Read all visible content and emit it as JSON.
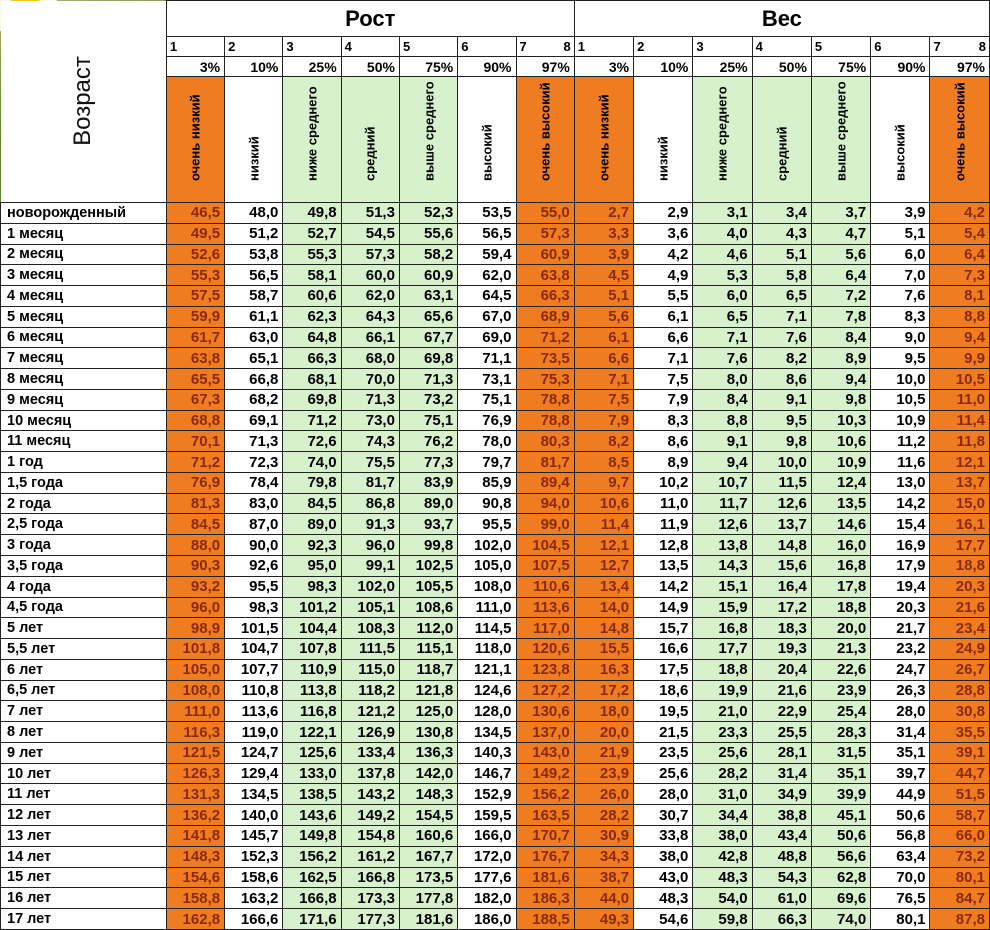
{
  "age_label": "Возраст",
  "height_label": "Рост",
  "weight_label": "Вес",
  "column_numbers": [
    "1",
    "2",
    "3",
    "4",
    "5",
    "6",
    "7",
    "8"
  ],
  "percentiles": [
    "3%",
    "10%",
    "25%",
    "50%",
    "75%",
    "90%",
    "97%"
  ],
  "categories": [
    "очень низкий",
    "низкий",
    "ниже среднего",
    "средний",
    "выше среднего",
    "высокий",
    "очень высокий"
  ],
  "rows": [
    {
      "age": "новорожденный",
      "h": [
        "46,5",
        "48,0",
        "49,8",
        "51,3",
        "52,3",
        "53,5",
        "55,0"
      ],
      "w": [
        "2,7",
        "2,9",
        "3,1",
        "3,4",
        "3,7",
        "3,9",
        "4,2"
      ]
    },
    {
      "age": "1 месяц",
      "h": [
        "49,5",
        "51,2",
        "52,7",
        "54,5",
        "55,6",
        "56,5",
        "57,3"
      ],
      "w": [
        "3,3",
        "3,6",
        "4,0",
        "4,3",
        "4,7",
        "5,1",
        "5,4"
      ]
    },
    {
      "age": "2 месяц",
      "h": [
        "52,6",
        "53,8",
        "55,3",
        "57,3",
        "58,2",
        "59,4",
        "60,9"
      ],
      "w": [
        "3,9",
        "4,2",
        "4,6",
        "5,1",
        "5,6",
        "6,0",
        "6,4"
      ]
    },
    {
      "age": "3 месяц",
      "h": [
        "55,3",
        "56,5",
        "58,1",
        "60,0",
        "60,9",
        "62,0",
        "63,8"
      ],
      "w": [
        "4,5",
        "4,9",
        "5,3",
        "5,8",
        "6,4",
        "7,0",
        "7,3"
      ]
    },
    {
      "age": "4 месяц",
      "h": [
        "57,5",
        "58,7",
        "60,6",
        "62,0",
        "63,1",
        "64,5",
        "66,3"
      ],
      "w": [
        "5,1",
        "5,5",
        "6,0",
        "6,5",
        "7,2",
        "7,6",
        "8,1"
      ]
    },
    {
      "age": "5 месяц",
      "h": [
        "59,9",
        "61,1",
        "62,3",
        "64,3",
        "65,6",
        "67,0",
        "68,9"
      ],
      "w": [
        "5,6",
        "6,1",
        "6,5",
        "7,1",
        "7,8",
        "8,3",
        "8,8"
      ]
    },
    {
      "age": "6 месяц",
      "h": [
        "61,7",
        "63,0",
        "64,8",
        "66,1",
        "67,7",
        "69,0",
        "71,2"
      ],
      "w": [
        "6,1",
        "6,6",
        "7,1",
        "7,6",
        "8,4",
        "9,0",
        "9,4"
      ]
    },
    {
      "age": "7 месяц",
      "h": [
        "63,8",
        "65,1",
        "66,3",
        "68,0",
        "69,8",
        "71,1",
        "73,5"
      ],
      "w": [
        "6,6",
        "7,1",
        "7,6",
        "8,2",
        "8,9",
        "9,5",
        "9,9"
      ]
    },
    {
      "age": "8 месяц",
      "h": [
        "65,5",
        "66,8",
        "68,1",
        "70,0",
        "71,3",
        "73,1",
        "75,3"
      ],
      "w": [
        "7,1",
        "7,5",
        "8,0",
        "8,6",
        "9,4",
        "10,0",
        "10,5"
      ]
    },
    {
      "age": "9 месяц",
      "h": [
        "67,3",
        "68,2",
        "69,8",
        "71,3",
        "73,2",
        "75,1",
        "78,8"
      ],
      "w": [
        "7,5",
        "7,9",
        "8,4",
        "9,1",
        "9,8",
        "10,5",
        "11,0"
      ]
    },
    {
      "age": "10 месяц",
      "h": [
        "68,8",
        "69,1",
        "71,2",
        "73,0",
        "75,1",
        "76,9",
        "78,8"
      ],
      "w": [
        "7,9",
        "8,3",
        "8,8",
        "9,5",
        "10,3",
        "10,9",
        "11,4"
      ]
    },
    {
      "age": "11 месяц",
      "h": [
        "70,1",
        "71,3",
        "72,6",
        "74,3",
        "76,2",
        "78,0",
        "80,3"
      ],
      "w": [
        "8,2",
        "8,6",
        "9,1",
        "9,8",
        "10,6",
        "11,2",
        "11,8"
      ]
    },
    {
      "age": "1 год",
      "h": [
        "71,2",
        "72,3",
        "74,0",
        "75,5",
        "77,3",
        "79,7",
        "81,7"
      ],
      "w": [
        "8,5",
        "8,9",
        "9,4",
        "10,0",
        "10,9",
        "11,6",
        "12,1"
      ]
    },
    {
      "age": "1,5 года",
      "h": [
        "76,9",
        "78,4",
        "79,8",
        "81,7",
        "83,9",
        "85,9",
        "89,4"
      ],
      "w": [
        "9,7",
        "10,2",
        "10,7",
        "11,5",
        "12,4",
        "13,0",
        "13,7"
      ]
    },
    {
      "age": "2 года",
      "h": [
        "81,3",
        "83,0",
        "84,5",
        "86,8",
        "89,0",
        "90,8",
        "94,0"
      ],
      "w": [
        "10,6",
        "11,0",
        "11,7",
        "12,6",
        "13,5",
        "14,2",
        "15,0"
      ]
    },
    {
      "age": "2,5 года",
      "h": [
        "84,5",
        "87,0",
        "89,0",
        "91,3",
        "93,7",
        "95,5",
        "99,0"
      ],
      "w": [
        "11,4",
        "11,9",
        "12,6",
        "13,7",
        "14,6",
        "15,4",
        "16,1"
      ]
    },
    {
      "age": "3 года",
      "h": [
        "88,0",
        "90,0",
        "92,3",
        "96,0",
        "99,8",
        "102,0",
        "104,5"
      ],
      "w": [
        "12,1",
        "12,8",
        "13,8",
        "14,8",
        "16,0",
        "16,9",
        "17,7"
      ]
    },
    {
      "age": "3,5 года",
      "h": [
        "90,3",
        "92,6",
        "95,0",
        "99,1",
        "102,5",
        "105,0",
        "107,5"
      ],
      "w": [
        "12,7",
        "13,5",
        "14,3",
        "15,6",
        "16,8",
        "17,9",
        "18,8"
      ]
    },
    {
      "age": "4 года",
      "h": [
        "93,2",
        "95,5",
        "98,3",
        "102,0",
        "105,5",
        "108,0",
        "110,6"
      ],
      "w": [
        "13,4",
        "14,2",
        "15,1",
        "16,4",
        "17,8",
        "19,4",
        "20,3"
      ]
    },
    {
      "age": "4,5 года",
      "h": [
        "96,0",
        "98,3",
        "101,2",
        "105,1",
        "108,6",
        "111,0",
        "113,6"
      ],
      "w": [
        "14,0",
        "14,9",
        "15,9",
        "17,2",
        "18,8",
        "20,3",
        "21,6"
      ]
    },
    {
      "age": "5 лет",
      "h": [
        "98,9",
        "101,5",
        "104,4",
        "108,3",
        "112,0",
        "114,5",
        "117,0"
      ],
      "w": [
        "14,8",
        "15,7",
        "16,8",
        "18,3",
        "20,0",
        "21,7",
        "23,4"
      ]
    },
    {
      "age": "5,5 лет",
      "h": [
        "101,8",
        "104,7",
        "107,8",
        "111,5",
        "115,1",
        "118,0",
        "120,6"
      ],
      "w": [
        "15,5",
        "16,6",
        "17,7",
        "19,3",
        "21,3",
        "23,2",
        "24,9"
      ]
    },
    {
      "age": "6 лет",
      "h": [
        "105,0",
        "107,7",
        "110,9",
        "115,0",
        "118,7",
        "121,1",
        "123,8"
      ],
      "w": [
        "16,3",
        "17,5",
        "18,8",
        "20,4",
        "22,6",
        "24,7",
        "26,7"
      ]
    },
    {
      "age": "6,5 лет",
      "h": [
        "108,0",
        "110,8",
        "113,8",
        "118,2",
        "121,8",
        "124,6",
        "127,2"
      ],
      "w": [
        "17,2",
        "18,6",
        "19,9",
        "21,6",
        "23,9",
        "26,3",
        "28,8"
      ]
    },
    {
      "age": "7 лет",
      "h": [
        "111,0",
        "113,6",
        "116,8",
        "121,2",
        "125,0",
        "128,0",
        "130,6"
      ],
      "w": [
        "18,0",
        "19,5",
        "21,0",
        "22,9",
        "25,4",
        "28,0",
        "30,8"
      ]
    },
    {
      "age": "8 лет",
      "h": [
        "116,3",
        "119,0",
        "122,1",
        "126,9",
        "130,8",
        "134,5",
        "137,0"
      ],
      "w": [
        "20,0",
        "21,5",
        "23,3",
        "25,5",
        "28,3",
        "31,4",
        "35,5"
      ]
    },
    {
      "age": "9 лет",
      "h": [
        "121,5",
        "124,7",
        "125,6",
        "133,4",
        "136,3",
        "140,3",
        "143,0"
      ],
      "w": [
        "21,9",
        "23,5",
        "25,6",
        "28,1",
        "31,5",
        "35,1",
        "39,1"
      ]
    },
    {
      "age": "10 лет",
      "h": [
        "126,3",
        "129,4",
        "133,0",
        "137,8",
        "142,0",
        "146,7",
        "149,2"
      ],
      "w": [
        "23,9",
        "25,6",
        "28,2",
        "31,4",
        "35,1",
        "39,7",
        "44,7"
      ]
    },
    {
      "age": "11 лет",
      "h": [
        "131,3",
        "134,5",
        "138,5",
        "143,2",
        "148,3",
        "152,9",
        "156,2"
      ],
      "w": [
        "26,0",
        "28,0",
        "31,0",
        "34,9",
        "39,9",
        "44,9",
        "51,5"
      ]
    },
    {
      "age": "12 лет",
      "h": [
        "136,2",
        "140,0",
        "143,6",
        "149,2",
        "154,5",
        "159,5",
        "163,5"
      ],
      "w": [
        "28,2",
        "30,7",
        "34,4",
        "38,8",
        "45,1",
        "50,6",
        "58,7"
      ]
    },
    {
      "age": "13 лет",
      "h": [
        "141,8",
        "145,7",
        "149,8",
        "154,8",
        "160,6",
        "166,0",
        "170,7"
      ],
      "w": [
        "30,9",
        "33,8",
        "38,0",
        "43,4",
        "50,6",
        "56,8",
        "66,0"
      ]
    },
    {
      "age": "14 лет",
      "h": [
        "148,3",
        "152,3",
        "156,2",
        "161,2",
        "167,7",
        "172,0",
        "176,7"
      ],
      "w": [
        "34,3",
        "38,0",
        "42,8",
        "48,8",
        "56,6",
        "63,4",
        "73,2"
      ]
    },
    {
      "age": "15 лет",
      "h": [
        "154,6",
        "158,6",
        "162,5",
        "166,8",
        "173,5",
        "177,6",
        "181,6"
      ],
      "w": [
        "38,7",
        "43,0",
        "48,3",
        "54,3",
        "62,8",
        "70,0",
        "80,1"
      ]
    },
    {
      "age": "16 лет",
      "h": [
        "158,8",
        "163,2",
        "166,8",
        "173,3",
        "177,8",
        "182,0",
        "186,3"
      ],
      "w": [
        "44,0",
        "48,3",
        "54,0",
        "61,0",
        "69,6",
        "76,5",
        "84,7"
      ]
    },
    {
      "age": "17 лет",
      "h": [
        "162,8",
        "166,6",
        "171,6",
        "177,3",
        "181,6",
        "186,0",
        "188,5"
      ],
      "w": [
        "49,3",
        "54,6",
        "59,8",
        "66,3",
        "74,0",
        "80,1",
        "87,8"
      ]
    }
  ]
}
